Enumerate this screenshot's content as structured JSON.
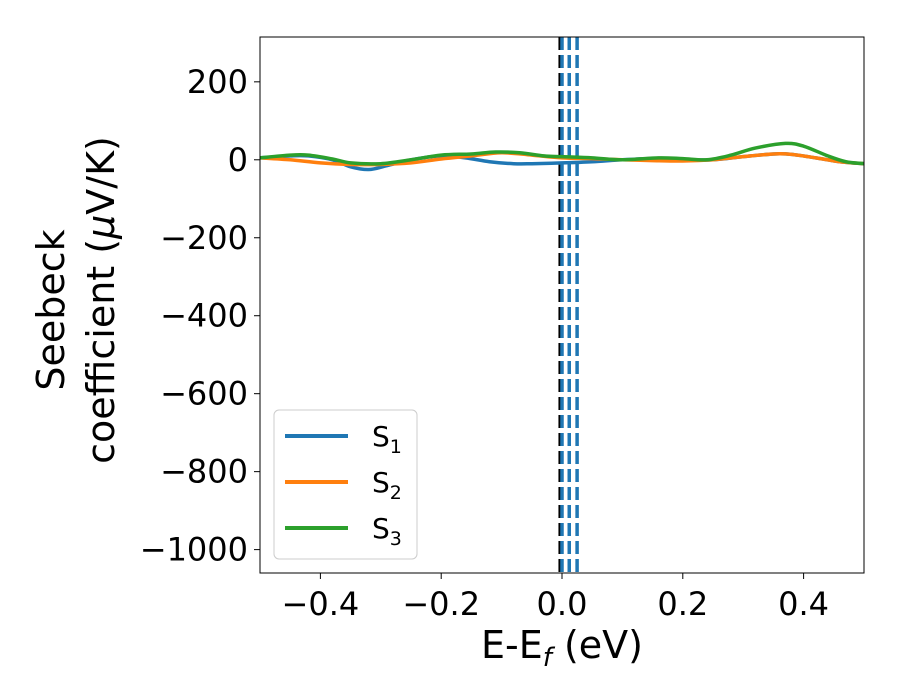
{
  "chart_data": {
    "type": "line",
    "xlabel": {
      "main": "E-E",
      "sub": "f",
      "unit": " (eV)"
    },
    "ylabel": {
      "line1": "Seebeck",
      "line2_prefix": "coefficient  (",
      "mu": "μ",
      "line2_suffix": "V/K)"
    },
    "xlim": [
      -0.5,
      0.5
    ],
    "ylim": [
      -1060,
      315
    ],
    "x_ticks": [
      -0.4,
      -0.2,
      0.0,
      0.2,
      0.4
    ],
    "x_tick_labels": [
      "−0.4",
      "−0.2",
      "0.0",
      "0.2",
      "0.4"
    ],
    "y_ticks": [
      200,
      0,
      -200,
      -400,
      -600,
      -800,
      -1000
    ],
    "y_tick_labels": [
      "200",
      "0",
      "−200",
      "−400",
      "−600",
      "−800",
      "−1000"
    ],
    "legend_placement": "lower-left",
    "series": [
      {
        "name": "S",
        "sub": "1",
        "color": "#1f77b4",
        "x": [
          -0.5,
          -0.45,
          -0.42,
          -0.38,
          -0.35,
          -0.32,
          -0.29,
          -0.25,
          -0.2,
          -0.16,
          -0.12,
          -0.08,
          -0.05,
          0.0,
          0.05,
          0.1,
          0.15,
          0.2,
          0.25,
          0.3,
          0.35,
          0.38,
          0.42,
          0.46,
          0.5
        ],
        "y": [
          5,
          10,
          10,
          0,
          -18,
          -25,
          -15,
          0,
          10,
          5,
          -5,
          -10,
          -10,
          -8,
          -5,
          0,
          3,
          0,
          0,
          8,
          15,
          14,
          5,
          -5,
          -10
        ]
      },
      {
        "name": "S",
        "sub": "2",
        "color": "#ff7f0e",
        "x": [
          -0.5,
          -0.45,
          -0.4,
          -0.35,
          -0.3,
          -0.25,
          -0.2,
          -0.15,
          -0.1,
          -0.05,
          0.0,
          0.05,
          0.1,
          0.15,
          0.2,
          0.25,
          0.3,
          0.35,
          0.38,
          0.42,
          0.46,
          0.5
        ],
        "y": [
          5,
          0,
          -8,
          -12,
          -12,
          -8,
          2,
          10,
          18,
          12,
          5,
          3,
          0,
          -2,
          -3,
          0,
          8,
          15,
          14,
          5,
          -5,
          -10
        ]
      },
      {
        "name": "S",
        "sub": "3",
        "color": "#2ca02c",
        "x": [
          -0.5,
          -0.45,
          -0.42,
          -0.38,
          -0.35,
          -0.3,
          -0.25,
          -0.2,
          -0.15,
          -0.11,
          -0.07,
          -0.03,
          0.0,
          0.05,
          0.1,
          0.16,
          0.2,
          0.24,
          0.28,
          0.32,
          0.37,
          0.4,
          0.44,
          0.47,
          0.5
        ],
        "y": [
          5,
          12,
          12,
          2,
          -8,
          -10,
          0,
          12,
          15,
          20,
          18,
          10,
          8,
          5,
          0,
          5,
          3,
          0,
          12,
          30,
          42,
          35,
          10,
          -5,
          -10
        ]
      }
    ],
    "vlines": [
      {
        "x": -0.003,
        "color": "#000000",
        "style": "dashed"
      },
      {
        "x": 0.0,
        "color": "#1f77b4",
        "style": "dashed"
      },
      {
        "x": 0.012,
        "color": "#1f77b4",
        "style": "dashed"
      },
      {
        "x": 0.025,
        "color": "#1f77b4",
        "style": "dashed"
      }
    ]
  }
}
